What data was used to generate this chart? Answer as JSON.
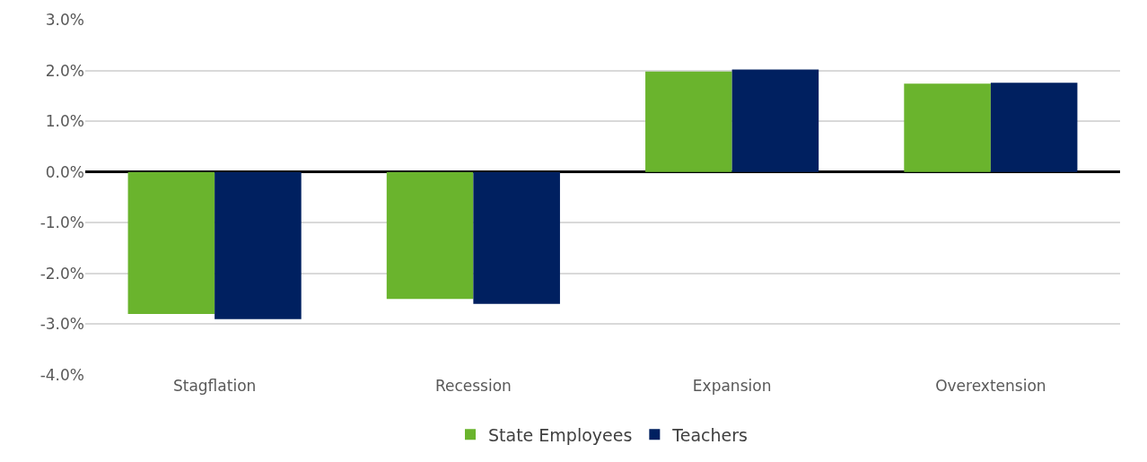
{
  "chart_data": {
    "type": "bar",
    "categories": [
      "Stagflation",
      "Recession",
      "Expansion",
      "Overextension"
    ],
    "series": [
      {
        "name": "State Employees",
        "color": "#6ab42d",
        "values": [
          -2.8,
          -2.5,
          1.98,
          1.74
        ]
      },
      {
        "name": "Teachers",
        "color": "#002060",
        "values": [
          -2.9,
          -2.6,
          2.02,
          1.76
        ]
      }
    ],
    "ylim": [
      -4.0,
      3.0
    ],
    "yticks": [
      {
        "value": -4,
        "label": "-4.0%"
      },
      {
        "value": -3,
        "label": "-3.0%"
      },
      {
        "value": -2,
        "label": "-2.0%"
      },
      {
        "value": -1,
        "label": "-1.0%"
      },
      {
        "value": 0,
        "label": "0.0%"
      },
      {
        "value": 1,
        "label": "1.0%"
      },
      {
        "value": 2,
        "label": "2.0%"
      },
      {
        "value": 3,
        "label": "3.0%"
      }
    ],
    "grid": "y",
    "legend": "bottom"
  }
}
